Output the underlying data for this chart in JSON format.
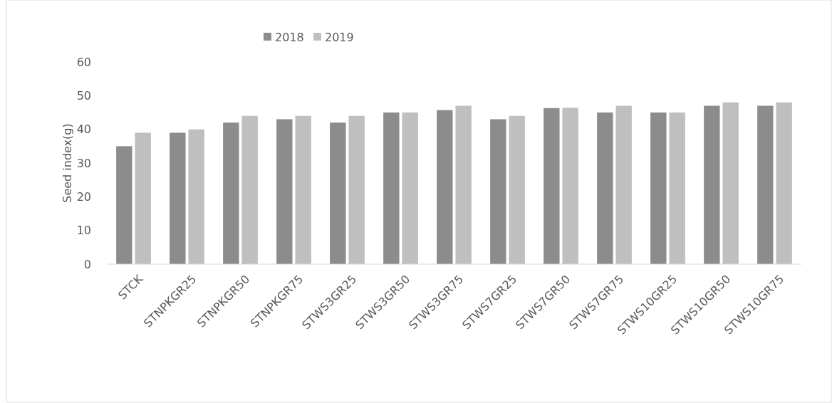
{
  "chart_data": {
    "type": "bar",
    "ylabel": "Seed index(g)",
    "categories": [
      "STCK",
      "STNPKGR25",
      "STNPKGR50",
      "STNPKGR75",
      "STWS3GR25",
      "STWS3GR50",
      "STWS3GR75",
      "STWS7GR25",
      "STWS7GR50",
      "STWS7GR75",
      "STWS10GR25",
      "STWS10GR50",
      "STWS10GR75"
    ],
    "series": [
      {
        "name": "2018",
        "color": "#8c8c8c",
        "values": [
          35,
          39,
          42,
          43,
          42,
          45,
          45.7,
          43,
          46.3,
          45,
          45,
          47,
          47
        ]
      },
      {
        "name": "2019",
        "color": "#bfbfbf",
        "values": [
          39,
          40,
          44,
          44,
          44,
          45,
          47,
          44,
          46.4,
          47,
          45,
          48,
          48
        ]
      }
    ],
    "ylim": [
      0,
      60
    ],
    "yticks": [
      0,
      10,
      20,
      30,
      40,
      50,
      60
    ],
    "grid": false,
    "legend": "top left"
  }
}
